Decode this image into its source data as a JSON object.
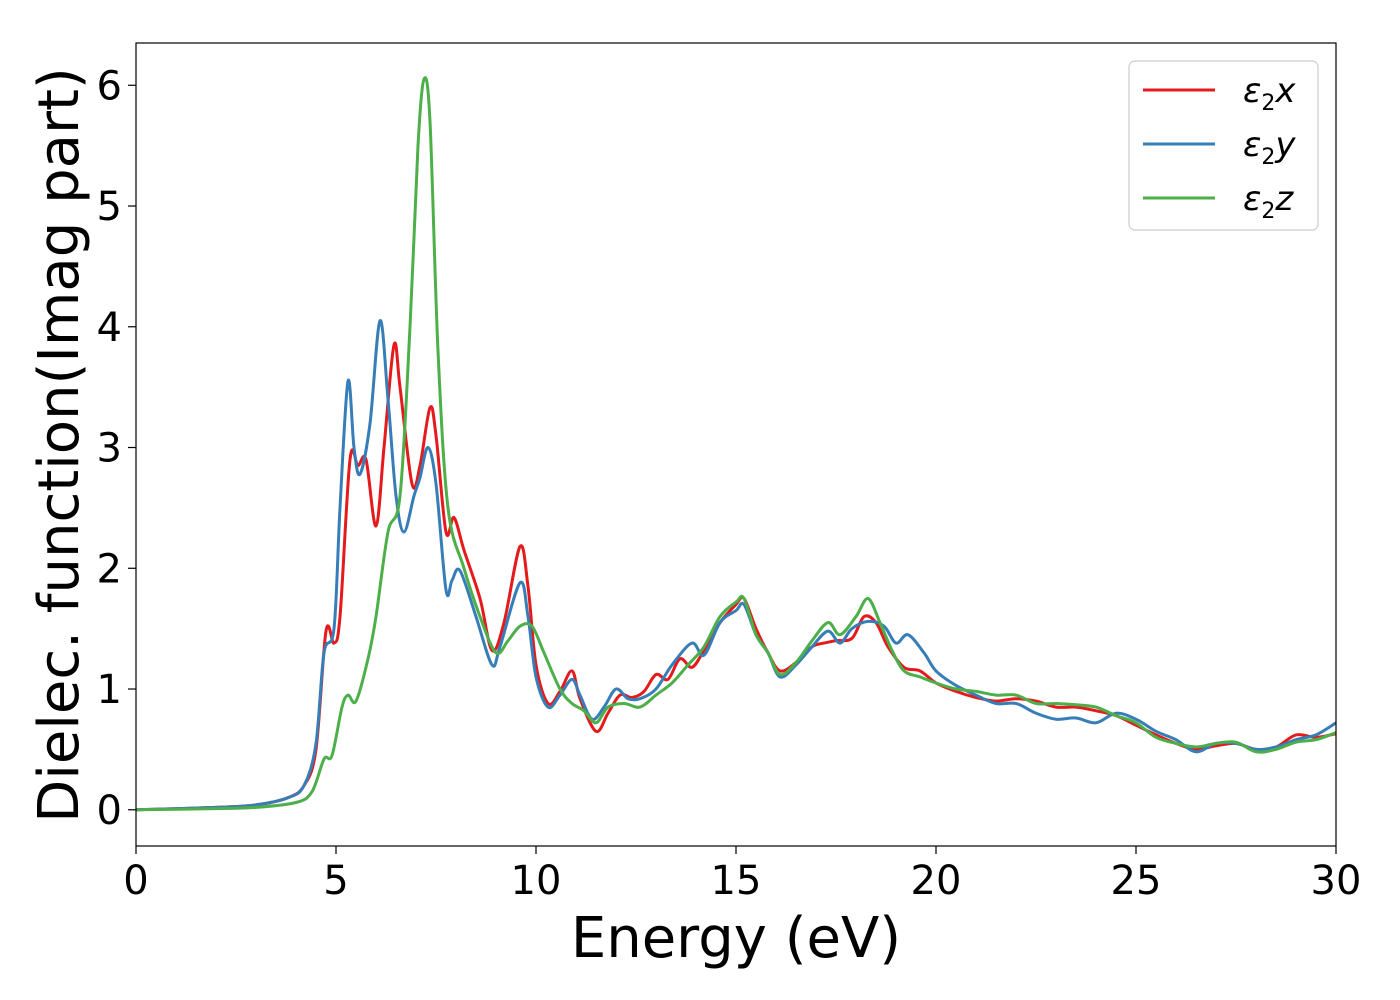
{
  "chart_data": {
    "type": "line",
    "xlabel": "Energy (eV)",
    "ylabel": "Dielec. function(Imag part)",
    "xlim": [
      0,
      30
    ],
    "ylim": [
      -0.3,
      6.35
    ],
    "xticks": [
      0,
      5,
      10,
      15,
      20,
      25,
      30
    ],
    "yticks": [
      0,
      1,
      2,
      3,
      4,
      5,
      6
    ],
    "grid": false,
    "legend_position": "top-right",
    "series": [
      {
        "name": "x",
        "symbol": "ε",
        "sub": "2",
        "color": "#e41a1c",
        "points": [
          [
            0,
            0
          ],
          [
            2,
            0.02
          ],
          [
            3,
            0.04
          ],
          [
            3.8,
            0.1
          ],
          [
            4.2,
            0.2
          ],
          [
            4.5,
            0.5
          ],
          [
            4.75,
            1.48
          ],
          [
            4.95,
            1.38
          ],
          [
            5.1,
            1.6
          ],
          [
            5.35,
            2.9
          ],
          [
            5.55,
            2.85
          ],
          [
            5.75,
            2.9
          ],
          [
            6.0,
            2.35
          ],
          [
            6.2,
            3.0
          ],
          [
            6.45,
            3.85
          ],
          [
            6.6,
            3.5
          ],
          [
            6.9,
            2.7
          ],
          [
            7.1,
            2.85
          ],
          [
            7.35,
            3.33
          ],
          [
            7.5,
            3.1
          ],
          [
            7.75,
            2.3
          ],
          [
            7.95,
            2.42
          ],
          [
            8.2,
            2.15
          ],
          [
            8.6,
            1.75
          ],
          [
            8.9,
            1.32
          ],
          [
            9.2,
            1.55
          ],
          [
            9.6,
            2.18
          ],
          [
            9.8,
            1.85
          ],
          [
            10.0,
            1.2
          ],
          [
            10.3,
            0.88
          ],
          [
            10.6,
            0.98
          ],
          [
            10.9,
            1.15
          ],
          [
            11.1,
            0.92
          ],
          [
            11.5,
            0.65
          ],
          [
            11.8,
            0.8
          ],
          [
            12.1,
            0.95
          ],
          [
            12.4,
            0.93
          ],
          [
            12.7,
            0.98
          ],
          [
            13.0,
            1.12
          ],
          [
            13.3,
            1.08
          ],
          [
            13.6,
            1.25
          ],
          [
            13.9,
            1.18
          ],
          [
            14.2,
            1.32
          ],
          [
            14.6,
            1.55
          ],
          [
            15.0,
            1.7
          ],
          [
            15.2,
            1.75
          ],
          [
            15.5,
            1.5
          ],
          [
            15.8,
            1.3
          ],
          [
            16.1,
            1.15
          ],
          [
            16.5,
            1.22
          ],
          [
            16.9,
            1.35
          ],
          [
            17.2,
            1.38
          ],
          [
            17.5,
            1.4
          ],
          [
            17.9,
            1.42
          ],
          [
            18.2,
            1.6
          ],
          [
            18.5,
            1.55
          ],
          [
            18.8,
            1.35
          ],
          [
            19.2,
            1.18
          ],
          [
            19.6,
            1.15
          ],
          [
            20.0,
            1.05
          ],
          [
            20.5,
            0.98
          ],
          [
            21.0,
            0.93
          ],
          [
            21.5,
            0.9
          ],
          [
            22.0,
            0.92
          ],
          [
            22.5,
            0.9
          ],
          [
            23.0,
            0.85
          ],
          [
            23.5,
            0.85
          ],
          [
            24.0,
            0.82
          ],
          [
            24.5,
            0.78
          ],
          [
            25.0,
            0.7
          ],
          [
            25.5,
            0.62
          ],
          [
            26.0,
            0.55
          ],
          [
            26.5,
            0.5
          ],
          [
            27.0,
            0.53
          ],
          [
            27.5,
            0.55
          ],
          [
            28.0,
            0.5
          ],
          [
            28.5,
            0.52
          ],
          [
            29.0,
            0.62
          ],
          [
            29.5,
            0.6
          ],
          [
            30.0,
            0.63
          ]
        ]
      },
      {
        "name": "y",
        "symbol": "ε",
        "sub": "2",
        "color": "#377eb8",
        "points": [
          [
            0,
            0
          ],
          [
            2,
            0.02
          ],
          [
            3,
            0.04
          ],
          [
            3.8,
            0.1
          ],
          [
            4.2,
            0.2
          ],
          [
            4.5,
            0.55
          ],
          [
            4.7,
            1.3
          ],
          [
            4.95,
            1.5
          ],
          [
            5.1,
            2.5
          ],
          [
            5.3,
            3.55
          ],
          [
            5.45,
            3.0
          ],
          [
            5.6,
            2.78
          ],
          [
            5.85,
            3.2
          ],
          [
            6.1,
            4.05
          ],
          [
            6.3,
            3.4
          ],
          [
            6.5,
            2.6
          ],
          [
            6.7,
            2.3
          ],
          [
            6.95,
            2.6
          ],
          [
            7.1,
            2.75
          ],
          [
            7.3,
            3.0
          ],
          [
            7.5,
            2.7
          ],
          [
            7.75,
            1.82
          ],
          [
            7.9,
            1.9
          ],
          [
            8.1,
            1.98
          ],
          [
            8.5,
            1.6
          ],
          [
            8.9,
            1.2
          ],
          [
            9.1,
            1.35
          ],
          [
            9.6,
            1.88
          ],
          [
            9.8,
            1.6
          ],
          [
            10.0,
            1.1
          ],
          [
            10.3,
            0.85
          ],
          [
            10.6,
            0.95
          ],
          [
            10.9,
            1.08
          ],
          [
            11.1,
            0.95
          ],
          [
            11.4,
            0.75
          ],
          [
            11.7,
            0.85
          ],
          [
            12.0,
            1.0
          ],
          [
            12.3,
            0.92
          ],
          [
            12.6,
            0.92
          ],
          [
            13.0,
            1.0
          ],
          [
            13.4,
            1.2
          ],
          [
            13.9,
            1.38
          ],
          [
            14.2,
            1.28
          ],
          [
            14.6,
            1.55
          ],
          [
            15.0,
            1.65
          ],
          [
            15.2,
            1.7
          ],
          [
            15.5,
            1.45
          ],
          [
            15.8,
            1.3
          ],
          [
            16.1,
            1.1
          ],
          [
            16.5,
            1.2
          ],
          [
            16.9,
            1.35
          ],
          [
            17.3,
            1.48
          ],
          [
            17.6,
            1.38
          ],
          [
            17.9,
            1.5
          ],
          [
            18.3,
            1.56
          ],
          [
            18.7,
            1.52
          ],
          [
            19.0,
            1.38
          ],
          [
            19.3,
            1.45
          ],
          [
            19.7,
            1.3
          ],
          [
            20.0,
            1.15
          ],
          [
            20.5,
            1.03
          ],
          [
            21.0,
            0.95
          ],
          [
            21.5,
            0.88
          ],
          [
            22.0,
            0.88
          ],
          [
            22.5,
            0.8
          ],
          [
            23.0,
            0.75
          ],
          [
            23.5,
            0.76
          ],
          [
            24.0,
            0.72
          ],
          [
            24.5,
            0.8
          ],
          [
            25.0,
            0.75
          ],
          [
            25.5,
            0.65
          ],
          [
            26.0,
            0.58
          ],
          [
            26.5,
            0.48
          ],
          [
            27.0,
            0.55
          ],
          [
            27.5,
            0.55
          ],
          [
            28.0,
            0.5
          ],
          [
            28.5,
            0.52
          ],
          [
            29.0,
            0.58
          ],
          [
            29.5,
            0.62
          ],
          [
            30.0,
            0.72
          ]
        ]
      },
      {
        "name": "z",
        "symbol": "ε",
        "sub": "2",
        "color": "#4daf4a",
        "points": [
          [
            0,
            0
          ],
          [
            2,
            0.01
          ],
          [
            3,
            0.02
          ],
          [
            4.0,
            0.06
          ],
          [
            4.4,
            0.15
          ],
          [
            4.7,
            0.42
          ],
          [
            4.9,
            0.45
          ],
          [
            5.15,
            0.85
          ],
          [
            5.3,
            0.95
          ],
          [
            5.5,
            0.9
          ],
          [
            5.8,
            1.25
          ],
          [
            6.0,
            1.6
          ],
          [
            6.3,
            2.3
          ],
          [
            6.6,
            2.6
          ],
          [
            6.85,
            4.0
          ],
          [
            7.05,
            5.5
          ],
          [
            7.2,
            6.05
          ],
          [
            7.35,
            5.7
          ],
          [
            7.55,
            3.8
          ],
          [
            7.8,
            2.5
          ],
          [
            8.2,
            2.0
          ],
          [
            8.6,
            1.6
          ],
          [
            9.0,
            1.3
          ],
          [
            9.3,
            1.4
          ],
          [
            9.6,
            1.52
          ],
          [
            9.9,
            1.52
          ],
          [
            10.2,
            1.3
          ],
          [
            10.6,
            1.0
          ],
          [
            10.9,
            0.88
          ],
          [
            11.2,
            0.82
          ],
          [
            11.5,
            0.72
          ],
          [
            11.8,
            0.85
          ],
          [
            12.2,
            0.88
          ],
          [
            12.6,
            0.85
          ],
          [
            13.0,
            0.95
          ],
          [
            13.4,
            1.05
          ],
          [
            13.8,
            1.2
          ],
          [
            14.2,
            1.35
          ],
          [
            14.6,
            1.6
          ],
          [
            15.0,
            1.72
          ],
          [
            15.2,
            1.75
          ],
          [
            15.5,
            1.45
          ],
          [
            15.8,
            1.3
          ],
          [
            16.1,
            1.12
          ],
          [
            16.5,
            1.22
          ],
          [
            16.9,
            1.4
          ],
          [
            17.3,
            1.55
          ],
          [
            17.6,
            1.45
          ],
          [
            18.0,
            1.6
          ],
          [
            18.3,
            1.75
          ],
          [
            18.6,
            1.55
          ],
          [
            18.9,
            1.32
          ],
          [
            19.2,
            1.15
          ],
          [
            19.6,
            1.1
          ],
          [
            20.0,
            1.05
          ],
          [
            20.5,
            1.0
          ],
          [
            21.0,
            0.98
          ],
          [
            21.5,
            0.95
          ],
          [
            22.0,
            0.95
          ],
          [
            22.5,
            0.88
          ],
          [
            23.0,
            0.88
          ],
          [
            23.5,
            0.87
          ],
          [
            24.0,
            0.85
          ],
          [
            24.5,
            0.78
          ],
          [
            25.0,
            0.72
          ],
          [
            25.5,
            0.6
          ],
          [
            26.0,
            0.55
          ],
          [
            26.5,
            0.52
          ],
          [
            27.0,
            0.55
          ],
          [
            27.5,
            0.56
          ],
          [
            28.0,
            0.48
          ],
          [
            28.5,
            0.5
          ],
          [
            29.0,
            0.56
          ],
          [
            29.5,
            0.58
          ],
          [
            30.0,
            0.64
          ]
        ]
      }
    ]
  }
}
